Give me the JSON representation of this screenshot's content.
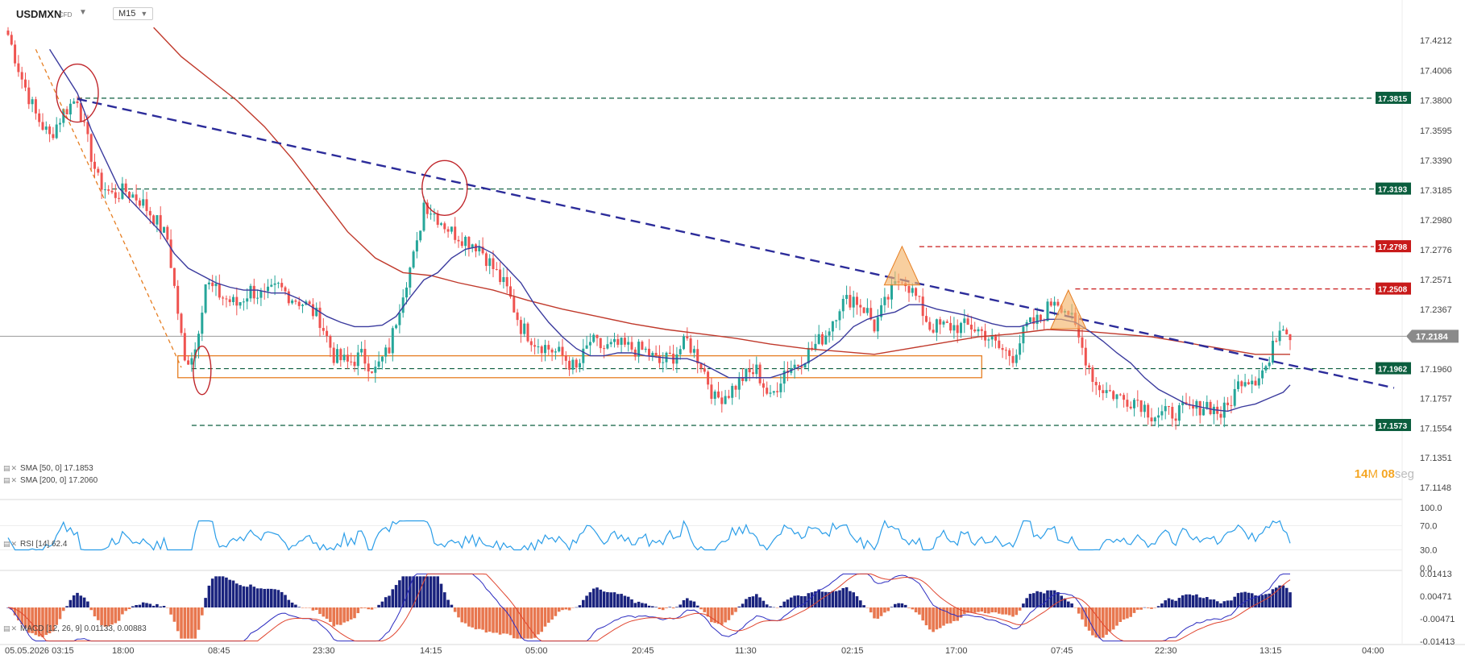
{
  "header": {
    "symbol": "USDMXN",
    "instrument_type": "CFD",
    "timeframe": "M15"
  },
  "price_axis_labels": [
    "17.4212",
    "17.4006",
    "17.3800",
    "17.3595",
    "17.3390",
    "17.3185",
    "17.2980",
    "17.2776",
    "17.2571",
    "17.2367",
    "17.2164",
    "17.1960",
    "17.1757",
    "17.1554",
    "17.1351",
    "17.1148"
  ],
  "time_axis_labels": [
    "05.05.2026 03:15",
    "18:00",
    "08:45",
    "23:30",
    "14:15",
    "05:00",
    "20:45",
    "11:30",
    "02:15",
    "17:00",
    "07:45",
    "22:30",
    "13:15",
    "04:00"
  ],
  "current_price": "17.2184",
  "level_tags": [
    {
      "value": "17.3815",
      "kind": "support-resistance"
    },
    {
      "value": "17.3193",
      "kind": "support-resistance"
    },
    {
      "value": "17.2798",
      "kind": "resistance-red"
    },
    {
      "value": "17.2508",
      "kind": "resistance-red"
    },
    {
      "value": "17.1962",
      "kind": "support-resistance"
    },
    {
      "value": "17.1573",
      "kind": "support-resistance"
    }
  ],
  "indicators": {
    "sma50": "SMA [50, 0] 17.1853",
    "sma200": "SMA [200, 0] 17.2060",
    "rsi": "RSI [14] 62.4",
    "macd": "MACD [12, 26, 9] 0.01133, 0.00883"
  },
  "rsi_axis_labels": [
    "100.0",
    "70.0",
    "30.0",
    "0.0"
  ],
  "macd_axis_labels": [
    "0.01413",
    "0.00471",
    "-0.00471",
    "-0.01413"
  ],
  "timer": {
    "minutes": "14",
    "min_unit": "M",
    "seconds": "08",
    "sec_unit": "seg"
  },
  "colors": {
    "bull": "#26a69a",
    "bear": "#ef5350",
    "sma50": "#3b3b9e",
    "sma200": "#c0392b",
    "trendline": "#2c2c9a",
    "level_green": "#0b5e3e",
    "level_red": "#c81a1a",
    "zone": "#e67e22",
    "rsi": "#2a9de8",
    "macd_pos": "#1a237e",
    "macd_neg": "#e8774f"
  },
  "chart_data": {
    "type": "candlestick",
    "price_range": [
      17.1148,
      17.4212
    ],
    "close_path": [
      [
        0,
        17.425
      ],
      [
        4,
        17.395
      ],
      [
        8,
        17.37
      ],
      [
        12,
        17.355
      ],
      [
        16,
        17.372
      ],
      [
        20,
        17.382
      ],
      [
        22,
        17.36
      ],
      [
        26,
        17.325
      ],
      [
        30,
        17.315
      ],
      [
        34,
        17.318
      ],
      [
        38,
        17.312
      ],
      [
        42,
        17.3
      ],
      [
        46,
        17.285
      ],
      [
        49,
        17.235
      ],
      [
        51,
        17.2
      ],
      [
        54,
        17.21
      ],
      [
        57,
        17.255
      ],
      [
        62,
        17.245
      ],
      [
        66,
        17.24
      ],
      [
        70,
        17.25
      ],
      [
        74,
        17.245
      ],
      [
        78,
        17.252
      ],
      [
        82,
        17.245
      ],
      [
        86,
        17.24
      ],
      [
        90,
        17.23
      ],
      [
        94,
        17.205
      ],
      [
        98,
        17.2
      ],
      [
        102,
        17.205
      ],
      [
        106,
        17.195
      ],
      [
        110,
        17.21
      ],
      [
        114,
        17.25
      ],
      [
        118,
        17.28
      ],
      [
        120,
        17.31
      ],
      [
        124,
        17.3
      ],
      [
        128,
        17.29
      ],
      [
        132,
        17.285
      ],
      [
        136,
        17.28
      ],
      [
        140,
        17.265
      ],
      [
        144,
        17.25
      ],
      [
        148,
        17.225
      ],
      [
        152,
        17.215
      ],
      [
        156,
        17.21
      ],
      [
        160,
        17.205
      ],
      [
        164,
        17.195
      ],
      [
        168,
        17.215
      ],
      [
        172,
        17.21
      ],
      [
        176,
        17.212
      ],
      [
        180,
        17.21
      ],
      [
        184,
        17.208
      ],
      [
        188,
        17.2
      ],
      [
        192,
        17.205
      ],
      [
        196,
        17.215
      ],
      [
        200,
        17.2
      ],
      [
        204,
        17.175
      ],
      [
        208,
        17.18
      ],
      [
        212,
        17.19
      ],
      [
        216,
        17.195
      ],
      [
        220,
        17.175
      ],
      [
        224,
        17.195
      ],
      [
        228,
        17.2
      ],
      [
        232,
        17.21
      ],
      [
        236,
        17.22
      ],
      [
        240,
        17.24
      ],
      [
        244,
        17.245
      ],
      [
        248,
        17.235
      ],
      [
        250,
        17.225
      ],
      [
        254,
        17.245
      ],
      [
        258,
        17.26
      ],
      [
        262,
        17.245
      ],
      [
        266,
        17.225
      ],
      [
        270,
        17.225
      ],
      [
        274,
        17.225
      ],
      [
        278,
        17.225
      ],
      [
        282,
        17.22
      ],
      [
        286,
        17.21
      ],
      [
        290,
        17.205
      ],
      [
        294,
        17.225
      ],
      [
        298,
        17.23
      ],
      [
        302,
        17.245
      ],
      [
        306,
        17.235
      ],
      [
        310,
        17.21
      ],
      [
        314,
        17.185
      ],
      [
        318,
        17.18
      ],
      [
        322,
        17.175
      ],
      [
        326,
        17.175
      ],
      [
        330,
        17.165
      ],
      [
        334,
        17.165
      ],
      [
        338,
        17.167
      ],
      [
        342,
        17.168
      ],
      [
        346,
        17.172
      ],
      [
        350,
        17.165
      ],
      [
        352,
        17.17
      ],
      [
        356,
        17.19
      ],
      [
        360,
        17.19
      ],
      [
        364,
        17.2
      ],
      [
        366,
        17.22
      ],
      [
        368,
        17.228
      ],
      [
        370,
        17.22
      ]
    ],
    "sma50_path": [
      [
        12,
        17.415
      ],
      [
        16,
        17.4
      ],
      [
        20,
        17.385
      ],
      [
        24,
        17.36
      ],
      [
        28,
        17.34
      ],
      [
        32,
        17.32
      ],
      [
        36,
        17.31
      ],
      [
        40,
        17.3
      ],
      [
        44,
        17.29
      ],
      [
        48,
        17.275
      ],
      [
        52,
        17.265
      ],
      [
        56,
        17.26
      ],
      [
        60,
        17.255
      ],
      [
        64,
        17.252
      ],
      [
        68,
        17.25
      ],
      [
        72,
        17.25
      ],
      [
        76,
        17.248
      ],
      [
        80,
        17.248
      ],
      [
        84,
        17.244
      ],
      [
        88,
        17.238
      ],
      [
        92,
        17.232
      ],
      [
        96,
        17.228
      ],
      [
        100,
        17.225
      ],
      [
        104,
        17.225
      ],
      [
        108,
        17.226
      ],
      [
        112,
        17.232
      ],
      [
        116,
        17.245
      ],
      [
        120,
        17.257
      ],
      [
        124,
        17.262
      ],
      [
        128,
        17.272
      ],
      [
        132,
        17.278
      ],
      [
        136,
        17.28
      ],
      [
        140,
        17.275
      ],
      [
        144,
        17.265
      ],
      [
        148,
        17.255
      ],
      [
        152,
        17.24
      ],
      [
        156,
        17.228
      ],
      [
        160,
        17.218
      ],
      [
        164,
        17.21
      ],
      [
        168,
        17.205
      ],
      [
        172,
        17.205
      ],
      [
        176,
        17.207
      ],
      [
        180,
        17.207
      ],
      [
        184,
        17.205
      ],
      [
        188,
        17.204
      ],
      [
        192,
        17.203
      ],
      [
        196,
        17.203
      ],
      [
        200,
        17.2
      ],
      [
        204,
        17.195
      ],
      [
        208,
        17.19
      ],
      [
        212,
        17.19
      ],
      [
        216,
        17.19
      ],
      [
        220,
        17.19
      ],
      [
        224,
        17.193
      ],
      [
        228,
        17.197
      ],
      [
        232,
        17.202
      ],
      [
        236,
        17.208
      ],
      [
        240,
        17.215
      ],
      [
        244,
        17.225
      ],
      [
        248,
        17.23
      ],
      [
        252,
        17.233
      ],
      [
        256,
        17.235
      ],
      [
        260,
        17.24
      ],
      [
        264,
        17.24
      ],
      [
        268,
        17.237
      ],
      [
        272,
        17.235
      ],
      [
        276,
        17.233
      ],
      [
        280,
        17.23
      ],
      [
        284,
        17.227
      ],
      [
        288,
        17.225
      ],
      [
        292,
        17.225
      ],
      [
        296,
        17.228
      ],
      [
        300,
        17.23
      ],
      [
        304,
        17.23
      ],
      [
        308,
        17.228
      ],
      [
        312,
        17.222
      ],
      [
        316,
        17.215
      ],
      [
        320,
        17.207
      ],
      [
        324,
        17.2
      ],
      [
        328,
        17.19
      ],
      [
        332,
        17.182
      ],
      [
        336,
        17.177
      ],
      [
        340,
        17.172
      ],
      [
        344,
        17.17
      ],
      [
        348,
        17.168
      ],
      [
        352,
        17.167
      ],
      [
        356,
        17.17
      ],
      [
        360,
        17.172
      ],
      [
        364,
        17.176
      ],
      [
        368,
        17.18
      ],
      [
        370,
        17.185
      ]
    ],
    "sma200_path": [
      [
        42,
        17.43
      ],
      [
        50,
        17.41
      ],
      [
        58,
        17.395
      ],
      [
        66,
        17.38
      ],
      [
        74,
        17.362
      ],
      [
        82,
        17.34
      ],
      [
        90,
        17.315
      ],
      [
        98,
        17.29
      ],
      [
        106,
        17.272
      ],
      [
        114,
        17.262
      ],
      [
        122,
        17.26
      ],
      [
        130,
        17.255
      ],
      [
        140,
        17.25
      ],
      [
        150,
        17.243
      ],
      [
        160,
        17.237
      ],
      [
        170,
        17.232
      ],
      [
        180,
        17.227
      ],
      [
        190,
        17.223
      ],
      [
        200,
        17.22
      ],
      [
        210,
        17.217
      ],
      [
        220,
        17.213
      ],
      [
        230,
        17.21
      ],
      [
        240,
        17.208
      ],
      [
        250,
        17.206
      ],
      [
        260,
        17.21
      ],
      [
        270,
        17.214
      ],
      [
        280,
        17.218
      ],
      [
        290,
        17.22
      ],
      [
        300,
        17.223
      ],
      [
        310,
        17.222
      ],
      [
        320,
        17.22
      ],
      [
        330,
        17.218
      ],
      [
        340,
        17.214
      ],
      [
        350,
        17.21
      ],
      [
        360,
        17.206
      ],
      [
        370,
        17.206
      ]
    ],
    "rsi_range": [
      0,
      100
    ],
    "macd_range": [
      -0.01413,
      0.01413
    ],
    "annotations": {
      "trendline": [
        [
          20,
          17.381
        ],
        [
          400,
          17.183
        ]
      ],
      "support_zone": {
        "x": [
          49,
          281
        ],
        "y": [
          17.19,
          17.205
        ]
      },
      "horizontal_levels": [
        {
          "value": 17.3815,
          "from": 20
        },
        {
          "value": 17.3193,
          "from": 30
        },
        {
          "value": 17.2798,
          "from": 263
        },
        {
          "value": 17.2508,
          "from": 308
        },
        {
          "value": 17.1962,
          "from": 53
        },
        {
          "value": 17.1573,
          "from": 53
        }
      ],
      "circles": [
        [
          20,
          17.385
        ],
        [
          126,
          17.32
        ],
        [
          56,
          17.195
        ]
      ],
      "triangles": [
        [
          258,
          17.28
        ],
        [
          306,
          17.25
        ]
      ]
    }
  }
}
